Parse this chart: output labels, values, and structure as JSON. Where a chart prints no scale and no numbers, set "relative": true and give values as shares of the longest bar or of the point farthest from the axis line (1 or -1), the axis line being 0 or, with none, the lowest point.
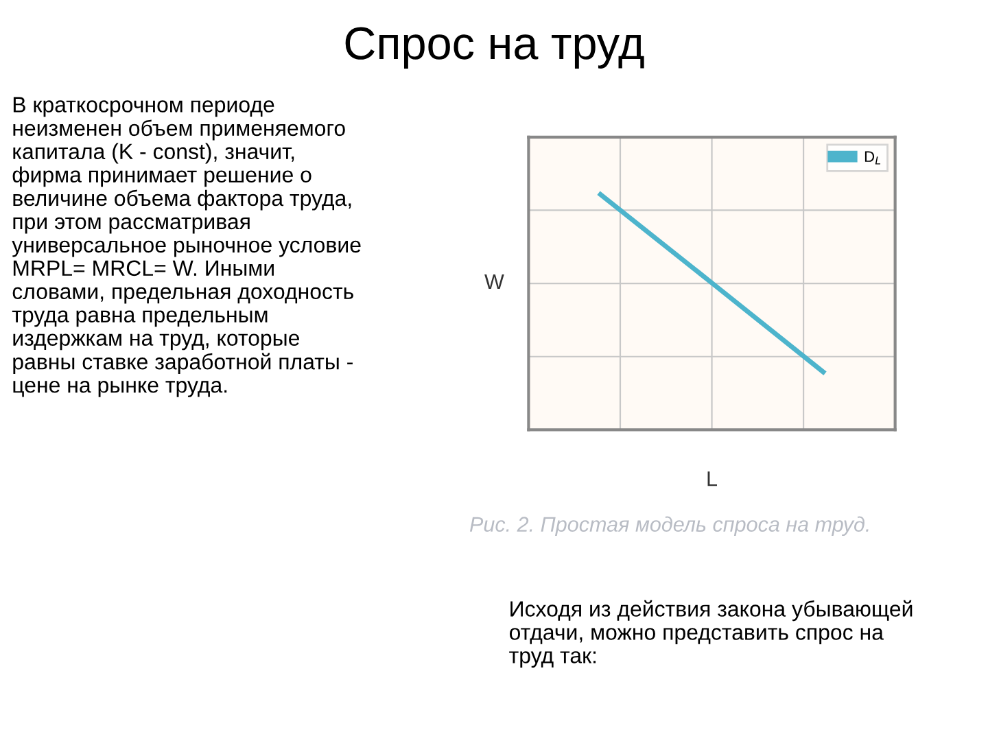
{
  "chart_data": {
    "type": "line",
    "title": "Спрос на труд",
    "xlabel": "L",
    "ylabel": "W",
    "categories": [
      null,
      null,
      null
    ],
    "series": [
      {
        "name": "D$_{L}$",
        "color": "#4db4cc",
        "values": [
          1,
          0.624,
          0.246
        ]
      }
    ],
    "relative": true,
    "grid": true,
    "legend": "top right",
    "marker": "none",
    "line_style": "solid",
    "annotations": [
      "В краткосрочном периоде\nнеизменен объем применяемого\nкапитала (K - const), значит,\nфирма принимает решение о\nвеличине объема фактора труда,\nпри этом рассматривая\nуниверсальное рыночное условие\nMRPL= MRCL= W. Иными\nсловами, предельная доходность\nтруда равна предельным\nиздержкам на труд, которые\nравны ставке заработной платы -\nцене на рынке труда.",
      "Рис. 2. Простая модель спроса на труд.",
      "Исходя из действия закона убывающей\nотдачи, можно представить спрос на\nтруд так:"
    ]
  }
}
